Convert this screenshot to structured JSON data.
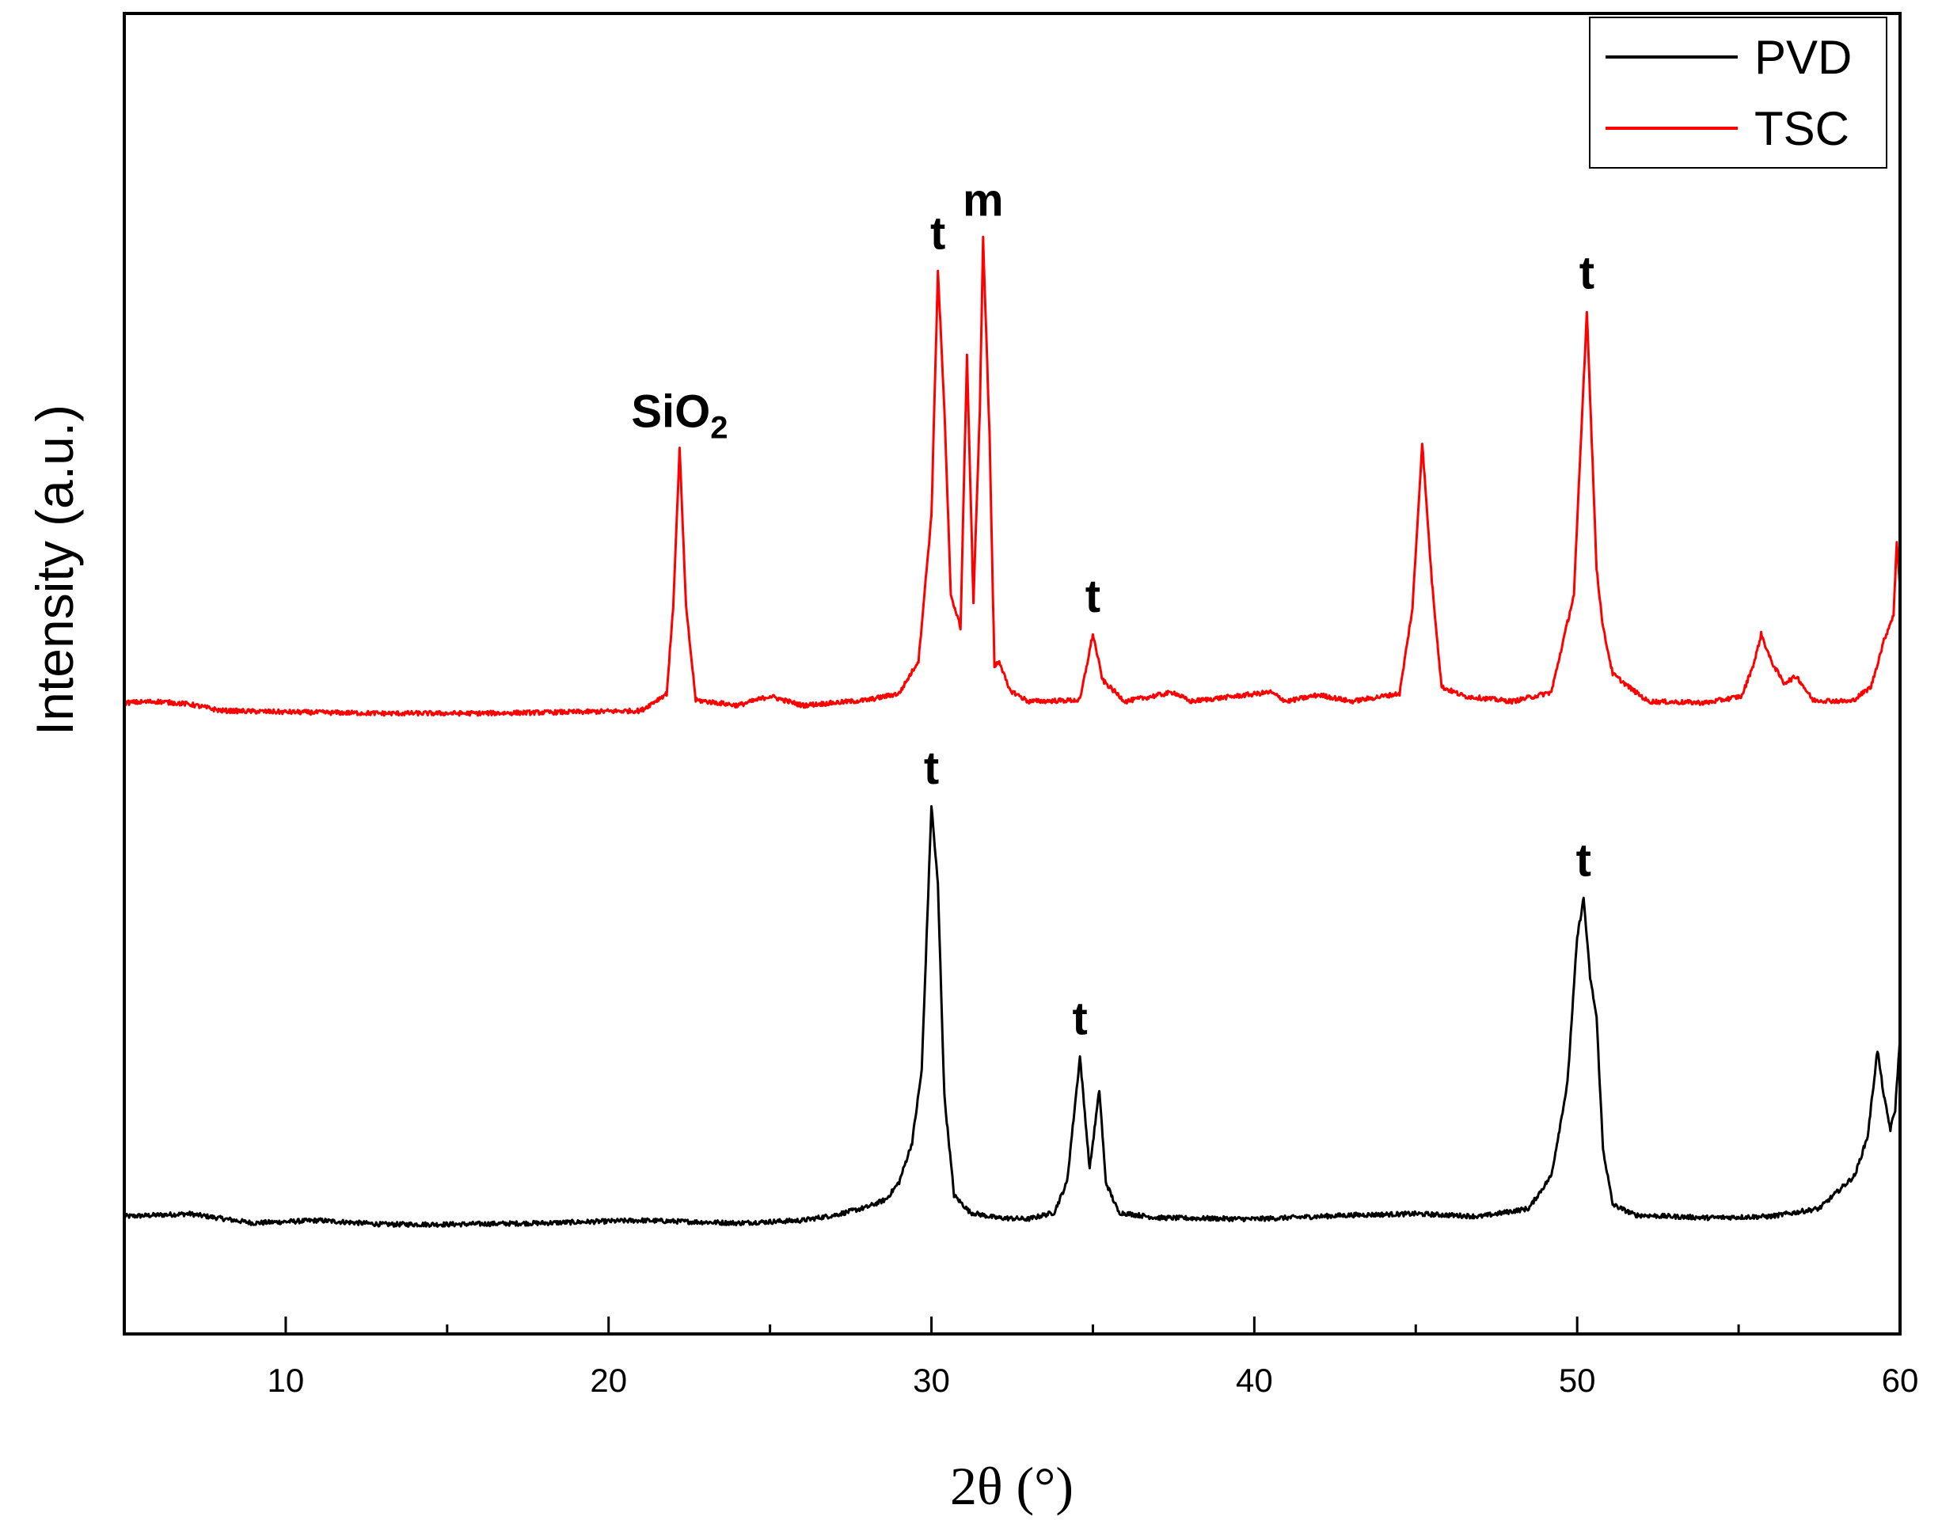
{
  "chart_data": {
    "type": "line",
    "xlabel": "2θ (°)",
    "ylabel": "Intensity (a.u.)",
    "xlim": [
      5,
      60
    ],
    "ylim": [
      0,
      100
    ],
    "x_ticks": [
      10,
      20,
      30,
      40,
      50,
      60
    ],
    "x_minor_ticks": [
      15,
      25,
      35,
      45,
      55
    ],
    "y_ticks_shown": false,
    "grid": false,
    "legend": {
      "placement": "top-right",
      "entries": [
        {
          "name": "PVD",
          "color": "#000000"
        },
        {
          "name": "TSC",
          "color": "#ff0000"
        }
      ]
    },
    "series": [
      {
        "name": "PVD",
        "color": "#000000",
        "baseline": 8.9,
        "points": [
          [
            5,
            8.9
          ],
          [
            7,
            9.1
          ],
          [
            9,
            8.4
          ],
          [
            11,
            8.6
          ],
          [
            13,
            8.3
          ],
          [
            15,
            8.3
          ],
          [
            18,
            8.4
          ],
          [
            21,
            8.6
          ],
          [
            24,
            8.4
          ],
          [
            26,
            8.6
          ],
          [
            27.0,
            9.0
          ],
          [
            28.0,
            9.6
          ],
          [
            28.6,
            10.2
          ],
          [
            29.0,
            11.5
          ],
          [
            29.4,
            14.5
          ],
          [
            29.7,
            20
          ],
          [
            30.0,
            40.0
          ],
          [
            30.2,
            34
          ],
          [
            30.4,
            18
          ],
          [
            30.7,
            10.5
          ],
          [
            31.2,
            9.2
          ],
          [
            32,
            8.8
          ],
          [
            33,
            8.7
          ],
          [
            33.8,
            9.2
          ],
          [
            34.2,
            11.5
          ],
          [
            34.6,
            21.0
          ],
          [
            34.9,
            12.5
          ],
          [
            35.2,
            18.5
          ],
          [
            35.4,
            11.5
          ],
          [
            35.8,
            9.2
          ],
          [
            37,
            8.8
          ],
          [
            40,
            8.7
          ],
          [
            43,
            9.0
          ],
          [
            45,
            9.1
          ],
          [
            47,
            8.9
          ],
          [
            48.5,
            9.5
          ],
          [
            49.2,
            12
          ],
          [
            49.7,
            19
          ],
          [
            50.0,
            30
          ],
          [
            50.2,
            33.0
          ],
          [
            50.4,
            27
          ],
          [
            50.6,
            24.0
          ],
          [
            50.8,
            14
          ],
          [
            51.1,
            9.8
          ],
          [
            51.8,
            9.0
          ],
          [
            54,
            8.8
          ],
          [
            56,
            8.9
          ],
          [
            57.5,
            9.5
          ],
          [
            58.6,
            12.0
          ],
          [
            59.0,
            15
          ],
          [
            59.3,
            21.5
          ],
          [
            59.5,
            18
          ],
          [
            59.7,
            15.5
          ],
          [
            59.85,
            17
          ],
          [
            60.0,
            22.5
          ]
        ]
      },
      {
        "name": "TSC",
        "color": "#ff0000",
        "baseline": 47.8,
        "points": [
          [
            5,
            47.8
          ],
          [
            6,
            47.9
          ],
          [
            7,
            47.7
          ],
          [
            8,
            47.2
          ],
          [
            10,
            47.1
          ],
          [
            13,
            47.0
          ],
          [
            16,
            47.0
          ],
          [
            19,
            47.1
          ],
          [
            21,
            47.2
          ],
          [
            21.8,
            48.5
          ],
          [
            22.0,
            55
          ],
          [
            22.2,
            67.0
          ],
          [
            22.4,
            55
          ],
          [
            22.7,
            48.0
          ],
          [
            24,
            47.6
          ],
          [
            25,
            48.3
          ],
          [
            26,
            47.6
          ],
          [
            28,
            48.0
          ],
          [
            29,
            48.5
          ],
          [
            29.6,
            51
          ],
          [
            30.0,
            62
          ],
          [
            30.2,
            80.5
          ],
          [
            30.4,
            70
          ],
          [
            30.6,
            56
          ],
          [
            30.9,
            53.5
          ],
          [
            31.1,
            74.0
          ],
          [
            31.3,
            55.5
          ],
          [
            31.5,
            70
          ],
          [
            31.6,
            83.0
          ],
          [
            31.8,
            68
          ],
          [
            31.95,
            50.5
          ],
          [
            32.1,
            51.0
          ],
          [
            32.4,
            48.8
          ],
          [
            33,
            47.9
          ],
          [
            34.6,
            48.0
          ],
          [
            35.0,
            53.0
          ],
          [
            35.3,
            49.5
          ],
          [
            36,
            47.9
          ],
          [
            37.5,
            48.6
          ],
          [
            38,
            47.9
          ],
          [
            40.5,
            48.6
          ],
          [
            41,
            47.9
          ],
          [
            42,
            48.4
          ],
          [
            43,
            47.9
          ],
          [
            44.5,
            48.5
          ],
          [
            44.9,
            55
          ],
          [
            45.2,
            67.5
          ],
          [
            45.5,
            57
          ],
          [
            45.8,
            49.0
          ],
          [
            46.5,
            48.3
          ],
          [
            48,
            47.9
          ],
          [
            49.2,
            48.6
          ],
          [
            49.9,
            56
          ],
          [
            50.3,
            77.5
          ],
          [
            50.6,
            58
          ],
          [
            50.8,
            53.5
          ],
          [
            51.1,
            50.0
          ],
          [
            51.6,
            49.0
          ],
          [
            52.2,
            47.9
          ],
          [
            54,
            47.8
          ],
          [
            55.1,
            48.3
          ],
          [
            55.5,
            51
          ],
          [
            55.7,
            53.0
          ],
          [
            56.0,
            51
          ],
          [
            56.4,
            49.3
          ],
          [
            56.8,
            49.8
          ],
          [
            57.3,
            48.0
          ],
          [
            58.5,
            47.9
          ],
          [
            59.1,
            49
          ],
          [
            59.5,
            52.5
          ],
          [
            59.8,
            54.5
          ],
          [
            59.9,
            60.0
          ],
          [
            60.0,
            56.5
          ]
        ]
      }
    ],
    "annotations": [
      {
        "series": "TSC",
        "label": "SiO",
        "subscript": "2",
        "x": 22.2,
        "at_y": 67.0
      },
      {
        "series": "TSC",
        "label": "t",
        "x": 30.2,
        "at_y": 80.5
      },
      {
        "series": "TSC",
        "label": "m",
        "x": 31.6,
        "at_y": 83.0
      },
      {
        "series": "TSC",
        "label": "t",
        "x": 35.0,
        "at_y": 53.0
      },
      {
        "series": "TSC",
        "label": "t",
        "x": 50.3,
        "at_y": 77.5
      },
      {
        "series": "PVD",
        "label": "t",
        "x": 30.0,
        "at_y": 40.0
      },
      {
        "series": "PVD",
        "label": "t",
        "x": 34.6,
        "at_y": 21.0
      },
      {
        "series": "PVD",
        "label": "t",
        "x": 50.2,
        "at_y": 33.0
      }
    ]
  }
}
